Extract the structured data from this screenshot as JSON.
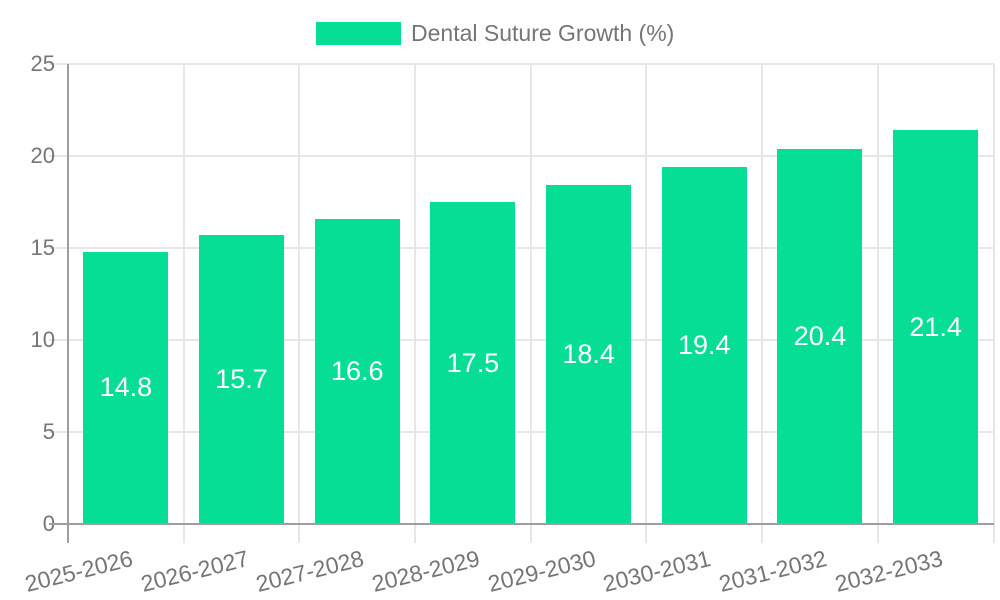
{
  "chart_data": {
    "type": "bar",
    "title": "",
    "categories": [
      "2025-2026",
      "2026-2027",
      "2027-2028",
      "2028-2029",
      "2029-2030",
      "2030-2031",
      "2031-2032",
      "2032-2033"
    ],
    "series": [
      {
        "name": "Dental Suture Growth (%)",
        "color": "#05DE94",
        "values": [
          14.8,
          15.7,
          16.6,
          17.5,
          18.4,
          19.4,
          20.4,
          21.4
        ]
      }
    ],
    "value_labels": [
      "14.8",
      "15.7",
      "16.6",
      "17.5",
      "18.4",
      "19.4",
      "20.4",
      "21.4"
    ],
    "xlabel": "",
    "ylabel": "",
    "ylim": [
      0,
      25
    ],
    "yticks": [
      0,
      5,
      10,
      15,
      20,
      25
    ],
    "grid": true,
    "legend_position": "top-center",
    "value_label_position": "inside-center",
    "x_label_rotation_deg": -14,
    "colors": {
      "bar": "#05DE94",
      "axis_text": "#757575",
      "value_text": "#ffffff",
      "gridline": "#e6e6e6",
      "axis_line": "#9e9e9e",
      "background": "#ffffff"
    }
  }
}
